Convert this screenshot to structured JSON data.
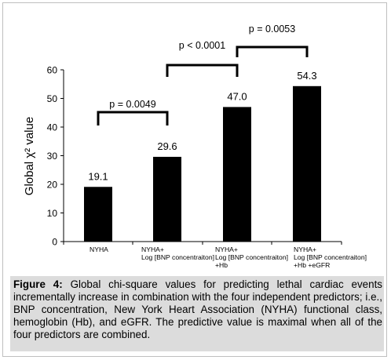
{
  "chart_data": {
    "type": "bar",
    "categories": [
      [
        "NYHA"
      ],
      [
        "NYHA+",
        "Log [BNP concentraiton]"
      ],
      [
        "NYHA+",
        "Log [BNP concentraiton]",
        "+Hb"
      ],
      [
        "NYHA+",
        "Log [BNP concentraiton]",
        "+Hb +eGFR"
      ]
    ],
    "values": [
      19.1,
      29.6,
      47.0,
      54.3
    ],
    "value_labels": [
      "19.1",
      "29.6",
      "47.0",
      "54.3"
    ],
    "ylabel": "Global χ² value",
    "ylim": [
      0,
      60
    ],
    "yticks": [
      0,
      10,
      20,
      30,
      40,
      50,
      60
    ],
    "bar_color": "#000000",
    "grid": false,
    "annotations": [
      {
        "label": "p = 0.0049",
        "from": 0,
        "to": 1
      },
      {
        "label": "p < 0.0001",
        "from": 1,
        "to": 2
      },
      {
        "label": "p = 0.0053",
        "from": 2,
        "to": 3
      }
    ]
  },
  "caption": {
    "label": "Figure 4:",
    "text": " Global chi-square values for predicting lethal cardiac events incrementally increase in combination with the four independent predictors; i.e., BNP concentration, New York Heart Association (NYHA) functional class, hemoglobin (Hb), and eGFR. The predictive value is maximal when all of the four predictors are combined."
  }
}
